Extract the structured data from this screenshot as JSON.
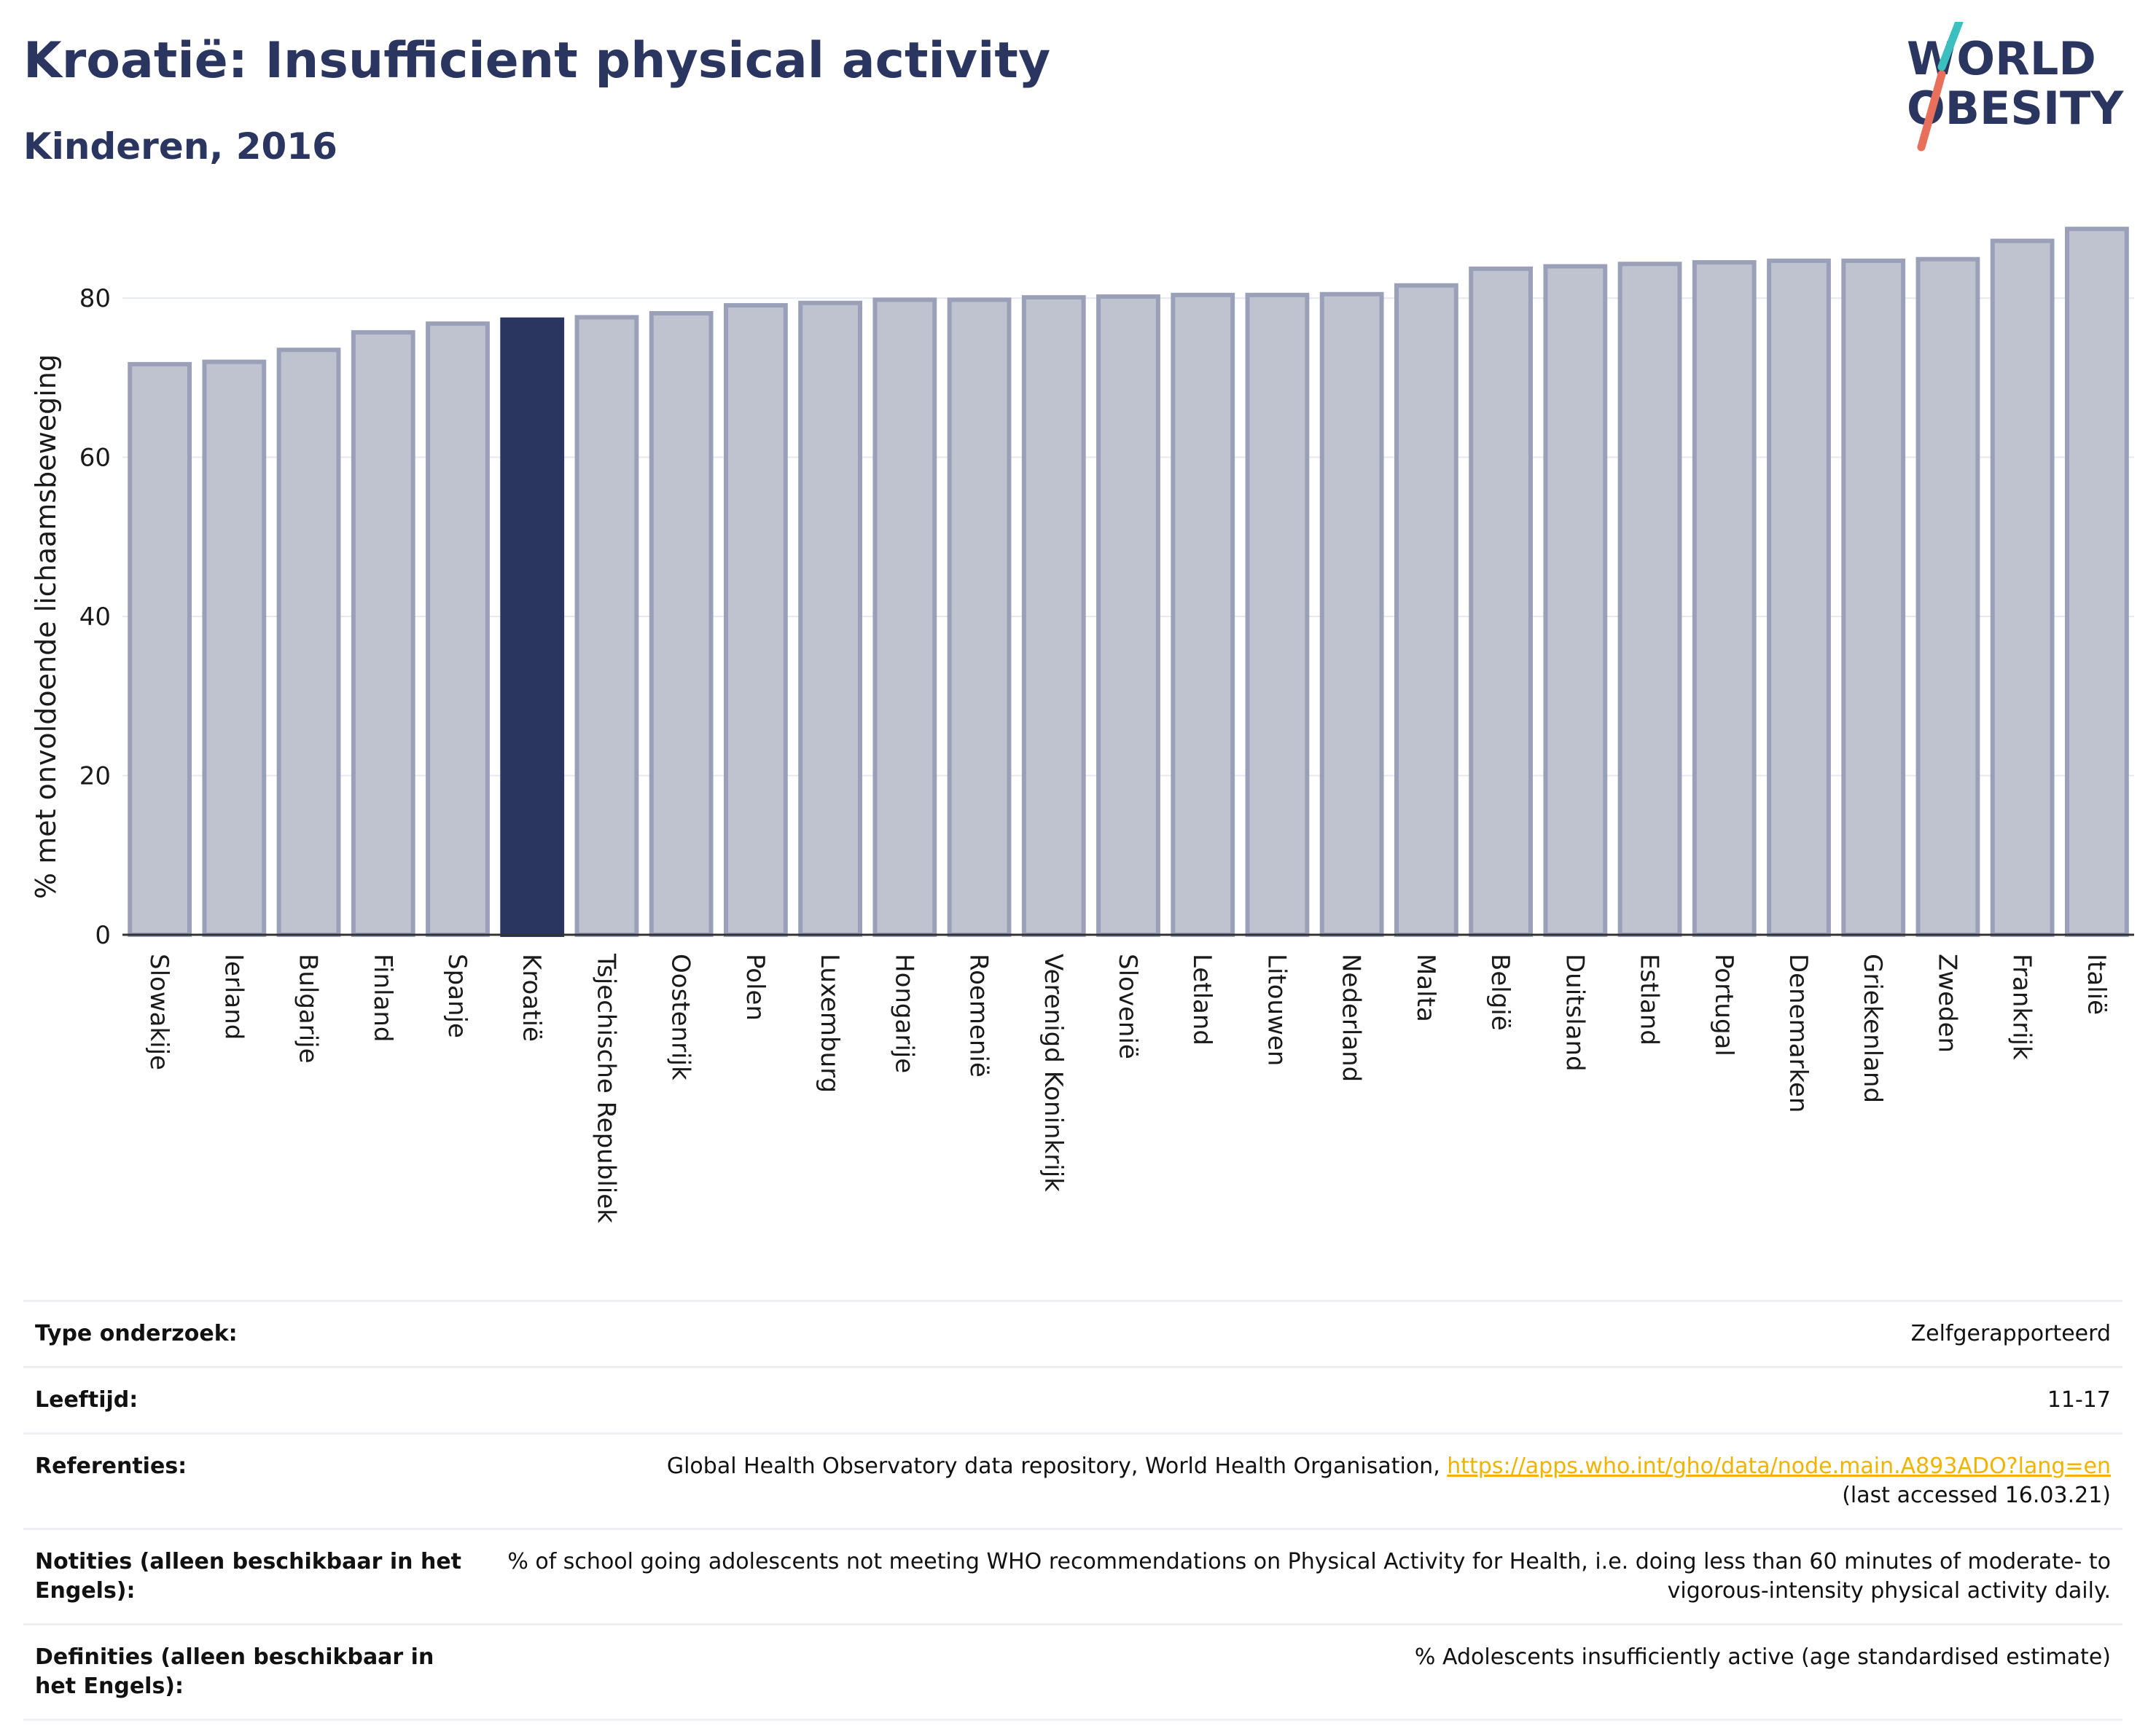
{
  "header": {
    "title": "Kroatië: Insufficient physical activity",
    "subtitle": "Kinderen, 2016"
  },
  "logo": {
    "line1": "WORLD",
    "line2": "OBESITY"
  },
  "colors": {
    "highlight": "#2a3560",
    "bar_fill": "#bfc3d0",
    "bar_stroke": "#9aa0b8",
    "grid": "#e6e8ef",
    "logo_teal": "#3bbfbf",
    "logo_coral": "#e8705a"
  },
  "chart_data": {
    "type": "bar",
    "title": "Kroatië: Insufficient physical activity",
    "subtitle": "Kinderen, 2016",
    "ylabel": "% met onvoldoende lichaamsbeweging",
    "xlabel": "",
    "ylim": [
      0,
      90
    ],
    "yticks": [
      0,
      20,
      40,
      60,
      80
    ],
    "grid": true,
    "highlight": "Kroatië",
    "categories": [
      "Slowakije",
      "Ierland",
      "Bulgarije",
      "Finland",
      "Spanje",
      "Kroatië",
      "Tsjechische Republiek",
      "Oostenrijk",
      "Polen",
      "Luxemburg",
      "Hongarije",
      "Roemenië",
      "Verenigd Koninkrijk",
      "Slovenië",
      "Letland",
      "Litouwen",
      "Nederland",
      "Malta",
      "België",
      "Duitsland",
      "Estland",
      "Portugal",
      "Denemarken",
      "Griekenland",
      "Zweden",
      "Frankrijk",
      "Italië"
    ],
    "values": [
      71.7,
      72.0,
      73.5,
      75.7,
      76.8,
      77.3,
      77.6,
      78.1,
      79.1,
      79.4,
      79.8,
      79.8,
      80.1,
      80.2,
      80.4,
      80.4,
      80.5,
      81.6,
      83.7,
      84.0,
      84.3,
      84.5,
      84.7,
      84.7,
      84.9,
      87.2,
      88.7
    ]
  },
  "info_table": {
    "rows": [
      {
        "key": "Type onderzoek:",
        "value": "Zelfgerapporteerd"
      },
      {
        "key": "Leeftijd:",
        "value": "11-17"
      },
      {
        "key": "Referenties:",
        "value_prefix": "Global Health Observatory data repository, World Health Organisation, ",
        "link": "https://apps.who.int/gho/data/node.main.A893ADO?lang=en",
        "value_suffix": "(last accessed 16.03.21)"
      },
      {
        "key": "Notities (alleen beschikbaar in het Engels):",
        "value": "% of school going adolescents not meeting WHO recommendations on Physical Activity for Health, i.e. doing less than 60 minutes of moderate- to vigorous-intensity physical activity daily."
      },
      {
        "key": "Definities (alleen beschikbaar in het Engels):",
        "value": "% Adolescents insufficiently active (age standardised estimate)"
      }
    ]
  }
}
